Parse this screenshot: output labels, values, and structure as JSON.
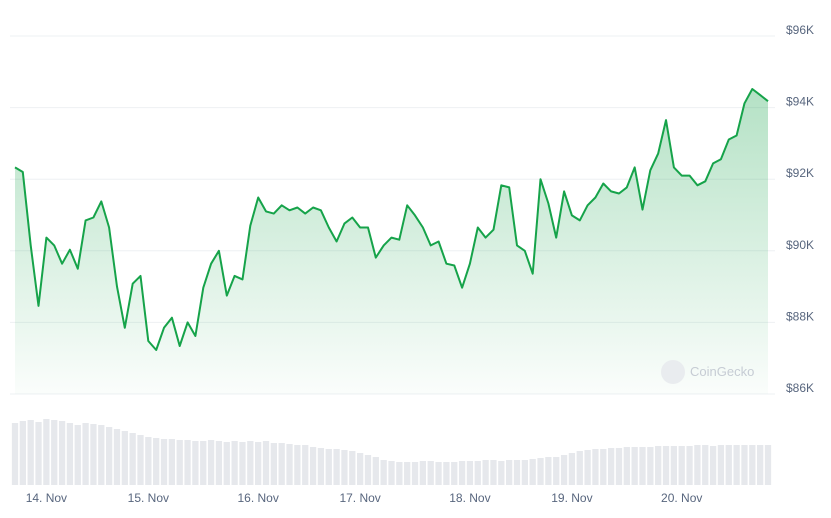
{
  "chart_data": {
    "type": "line",
    "watermark": "CoinGecko",
    "color": "#16a34a",
    "volume_color": "#e6e8ec",
    "ylim": [
      86000,
      96000
    ],
    "yticks": [
      {
        "value": 86000,
        "label": "$86K"
      },
      {
        "value": 88000,
        "label": "$88K"
      },
      {
        "value": 90000,
        "label": "$90K"
      },
      {
        "value": 92000,
        "label": "$92K"
      },
      {
        "value": 94000,
        "label": "$94K"
      },
      {
        "value": 96000,
        "label": "$96K"
      }
    ],
    "grid": true,
    "categories": [
      null,
      null,
      null,
      null,
      "14. Nov",
      null,
      null,
      null,
      null,
      null,
      null,
      null,
      null,
      null,
      null,
      null,
      null,
      "15. Nov",
      null,
      null,
      null,
      null,
      null,
      null,
      null,
      null,
      null,
      null,
      null,
      null,
      null,
      "16. Nov",
      null,
      null,
      null,
      null,
      null,
      null,
      null,
      null,
      null,
      null,
      null,
      null,
      "17. Nov",
      null,
      null,
      null,
      null,
      null,
      null,
      null,
      null,
      null,
      null,
      null,
      null,
      null,
      "18. Nov",
      null,
      null,
      null,
      null,
      null,
      null,
      null,
      null,
      null,
      null,
      null,
      null,
      "19. Nov",
      null,
      null,
      null,
      null,
      null,
      null,
      null,
      null,
      null,
      null,
      null,
      null,
      null,
      "20. Nov",
      null,
      null,
      null,
      null,
      null,
      null,
      null,
      null,
      null,
      null,
      null
    ],
    "values": [
      92330,
      92200,
      90150,
      88460,
      90370,
      90150,
      89640,
      90030,
      89500,
      90850,
      90930,
      91380,
      90650,
      89000,
      87850,
      89080,
      89300,
      87480,
      87230,
      87850,
      88130,
      87340,
      88000,
      87620,
      88970,
      89640,
      90000,
      88750,
      89300,
      89200,
      90700,
      91490,
      91100,
      91040,
      91270,
      91130,
      91210,
      91040,
      91210,
      91130,
      90650,
      90260,
      90760,
      90930,
      90650,
      90650,
      89810,
      90150,
      90370,
      90310,
      91270,
      90990,
      90650,
      90150,
      90260,
      89640,
      89590,
      88970,
      89640,
      90650,
      90370,
      90590,
      91830,
      91770,
      90150,
      90000,
      89360,
      92000,
      91320,
      90370,
      91660,
      90990,
      90850,
      91270,
      91490,
      91880,
      91660,
      91600,
      91770,
      92330,
      91150,
      92250,
      92720,
      93650,
      92330,
      92100,
      92100,
      91830,
      91940,
      92440,
      92560,
      93110,
      93220,
      94120,
      94520,
      94350,
      94180
    ],
    "volume": [
      62,
      64,
      65,
      63,
      66,
      65,
      64,
      62,
      60,
      62,
      61,
      60,
      58,
      56,
      54,
      52,
      50,
      48,
      47,
      46,
      46,
      45,
      45,
      44,
      44,
      45,
      44,
      43,
      44,
      43,
      44,
      43,
      44,
      42,
      42,
      41,
      40,
      40,
      38,
      37,
      36,
      36,
      35,
      34,
      32,
      30,
      28,
      25,
      24,
      23,
      23,
      23,
      24,
      24,
      23,
      23,
      23,
      24,
      24,
      24,
      25,
      25,
      24,
      25,
      25,
      25,
      26,
      27,
      28,
      28,
      30,
      32,
      34,
      35,
      36,
      36,
      37,
      37,
      38,
      38,
      38,
      38,
      39,
      39,
      39,
      39,
      39,
      40,
      40,
      39,
      40,
      40,
      40,
      40,
      40,
      40,
      40
    ]
  }
}
